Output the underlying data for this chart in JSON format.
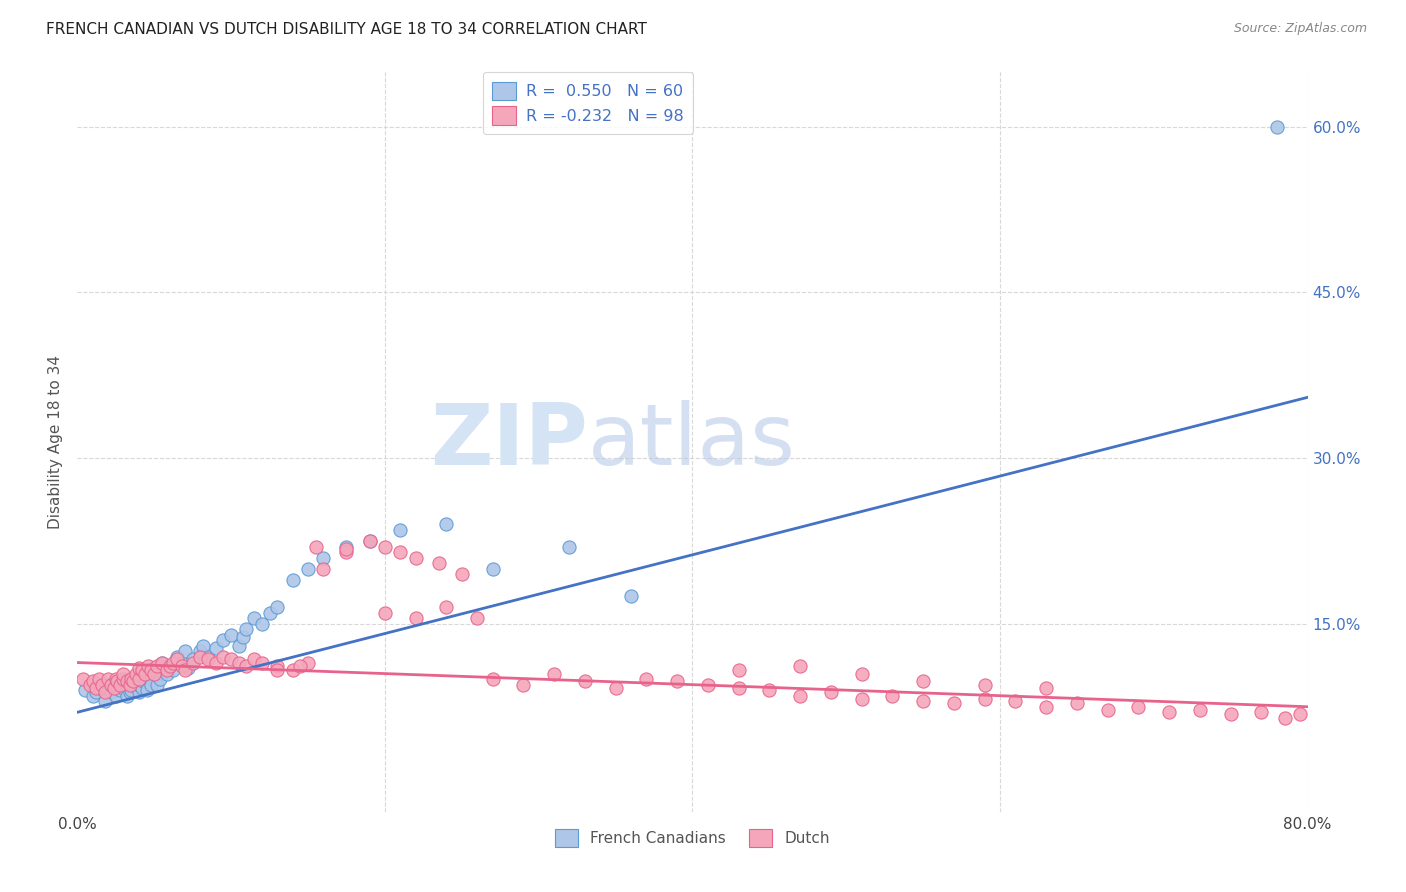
{
  "title": "FRENCH CANADIAN VS DUTCH DISABILITY AGE 18 TO 34 CORRELATION CHART",
  "source": "Source: ZipAtlas.com",
  "ylabel": "Disability Age 18 to 34",
  "xlim": [
    0.0,
    0.8
  ],
  "ylim": [
    -0.02,
    0.65
  ],
  "xticks": [
    0.0,
    0.2,
    0.4,
    0.6,
    0.8
  ],
  "xticklabels": [
    "0.0%",
    "",
    "",
    "",
    "80.0%"
  ],
  "yticks_right": [
    0.0,
    0.15,
    0.3,
    0.45,
    0.6
  ],
  "ytick_right_labels": [
    "",
    "15.0%",
    "30.0%",
    "45.0%",
    "60.0%"
  ],
  "blue_color": "#aec6e8",
  "pink_color": "#f4a7bb",
  "blue_edge_color": "#5b9bd5",
  "pink_edge_color": "#e8638c",
  "blue_line_color": "#4472c4",
  "pink_line_color": "#e8638c",
  "legend_text_color": "#4472c4",
  "blue_scatter_x": [
    0.005,
    0.01,
    0.012,
    0.015,
    0.018,
    0.02,
    0.022,
    0.025,
    0.025,
    0.028,
    0.03,
    0.03,
    0.032,
    0.034,
    0.035,
    0.036,
    0.038,
    0.04,
    0.04,
    0.042,
    0.043,
    0.045,
    0.046,
    0.048,
    0.05,
    0.052,
    0.054,
    0.055,
    0.058,
    0.06,
    0.062,
    0.065,
    0.068,
    0.07,
    0.072,
    0.075,
    0.08,
    0.082,
    0.085,
    0.09,
    0.095,
    0.1,
    0.105,
    0.108,
    0.11,
    0.115,
    0.12,
    0.125,
    0.13,
    0.14,
    0.15,
    0.16,
    0.175,
    0.19,
    0.21,
    0.24,
    0.27,
    0.32,
    0.36,
    0.78
  ],
  "blue_scatter_y": [
    0.09,
    0.085,
    0.088,
    0.092,
    0.08,
    0.095,
    0.088,
    0.085,
    0.093,
    0.09,
    0.092,
    0.098,
    0.085,
    0.088,
    0.09,
    0.095,
    0.1,
    0.088,
    0.095,
    0.092,
    0.098,
    0.09,
    0.105,
    0.095,
    0.11,
    0.095,
    0.1,
    0.115,
    0.105,
    0.112,
    0.108,
    0.12,
    0.115,
    0.125,
    0.11,
    0.118,
    0.125,
    0.13,
    0.12,
    0.128,
    0.135,
    0.14,
    0.13,
    0.138,
    0.145,
    0.155,
    0.15,
    0.16,
    0.165,
    0.19,
    0.2,
    0.21,
    0.22,
    0.225,
    0.235,
    0.24,
    0.2,
    0.22,
    0.175,
    0.6
  ],
  "pink_scatter_x": [
    0.004,
    0.008,
    0.01,
    0.012,
    0.014,
    0.016,
    0.018,
    0.02,
    0.022,
    0.024,
    0.025,
    0.026,
    0.028,
    0.03,
    0.03,
    0.032,
    0.034,
    0.035,
    0.036,
    0.038,
    0.04,
    0.04,
    0.042,
    0.044,
    0.046,
    0.048,
    0.05,
    0.052,
    0.055,
    0.058,
    0.06,
    0.062,
    0.065,
    0.068,
    0.07,
    0.075,
    0.08,
    0.085,
    0.09,
    0.095,
    0.1,
    0.105,
    0.11,
    0.115,
    0.12,
    0.13,
    0.14,
    0.15,
    0.16,
    0.175,
    0.19,
    0.2,
    0.21,
    0.22,
    0.235,
    0.25,
    0.27,
    0.29,
    0.31,
    0.33,
    0.35,
    0.37,
    0.39,
    0.41,
    0.43,
    0.45,
    0.47,
    0.49,
    0.51,
    0.53,
    0.55,
    0.57,
    0.59,
    0.61,
    0.63,
    0.65,
    0.67,
    0.69,
    0.71,
    0.73,
    0.75,
    0.77,
    0.785,
    0.795,
    0.2,
    0.22,
    0.24,
    0.26,
    0.175,
    0.155,
    0.13,
    0.145,
    0.43,
    0.47,
    0.51,
    0.55,
    0.59,
    0.63
  ],
  "pink_scatter_y": [
    0.1,
    0.095,
    0.098,
    0.092,
    0.1,
    0.095,
    0.088,
    0.1,
    0.095,
    0.092,
    0.1,
    0.098,
    0.095,
    0.1,
    0.105,
    0.098,
    0.095,
    0.1,
    0.098,
    0.105,
    0.1,
    0.11,
    0.108,
    0.105,
    0.112,
    0.108,
    0.105,
    0.112,
    0.115,
    0.108,
    0.112,
    0.115,
    0.118,
    0.112,
    0.108,
    0.115,
    0.12,
    0.118,
    0.115,
    0.12,
    0.118,
    0.115,
    0.112,
    0.118,
    0.115,
    0.112,
    0.108,
    0.115,
    0.2,
    0.215,
    0.225,
    0.22,
    0.215,
    0.21,
    0.205,
    0.195,
    0.1,
    0.095,
    0.105,
    0.098,
    0.092,
    0.1,
    0.098,
    0.095,
    0.092,
    0.09,
    0.085,
    0.088,
    0.082,
    0.085,
    0.08,
    0.078,
    0.082,
    0.08,
    0.075,
    0.078,
    0.072,
    0.075,
    0.07,
    0.072,
    0.068,
    0.07,
    0.065,
    0.068,
    0.16,
    0.155,
    0.165,
    0.155,
    0.218,
    0.22,
    0.108,
    0.112,
    0.108,
    0.112,
    0.105,
    0.098,
    0.095,
    0.092
  ],
  "watermark_zip": "ZIP",
  "watermark_atlas": "atlas",
  "background_color": "#ffffff",
  "grid_color": "#d8d8d8"
}
